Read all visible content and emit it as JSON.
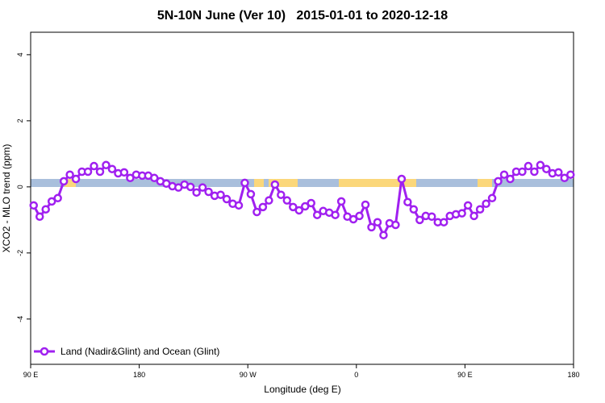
{
  "chart_data": {
    "type": "line",
    "title": "5N-10N June (Ver 10)   2015-01-01 to 2020-12-18",
    "x_label": "Longitude (deg E)",
    "y_label": "XCO2 - MLO trend (ppm)",
    "xlim": [
      90,
      540
    ],
    "ylim": [
      -5.37,
      4.68
    ],
    "xticks": [
      {
        "value": 90,
        "label": "90 E"
      },
      180,
      {
        "value": 270,
        "label": "90 W"
      },
      {
        "value": 360,
        "label": "0"
      },
      {
        "value": 450,
        "label": "90 E"
      },
      {
        "value": 540,
        "label": "180"
      }
    ],
    "yticks": [
      -4,
      -2,
      0,
      2,
      4
    ],
    "legend": "bottom-left",
    "series": [
      {
        "name": "Land (Nadir&Glint) and Ocean (Glint)",
        "color": "#a020f0",
        "x": [
          92.5,
          97.5,
          102.5,
          107.5,
          112.5,
          117.5,
          122.5,
          127.5,
          132.5,
          137.5,
          142.5,
          147.5,
          152.5,
          157.5,
          162.5,
          167.5,
          172.5,
          177.5,
          182.5,
          187.5,
          192.5,
          197.5,
          202.5,
          207.5,
          212.5,
          217.5,
          222.5,
          227.5,
          232.5,
          237.5,
          242.5,
          247.5,
          252.5,
          257.5,
          262.5,
          267.5,
          272.5,
          277.5,
          282.5,
          287.5,
          292.5,
          297.5,
          302.5,
          307.5,
          312.5,
          317.5,
          322.5,
          327.5,
          332.5,
          337.5,
          342.5,
          347.5,
          352.5,
          357.5,
          362.5,
          367.5,
          372.5,
          377.5,
          382.5,
          387.5,
          392.5,
          397.5,
          402.5,
          407.5,
          412.5,
          417.5,
          422.5,
          427.5,
          432.5,
          437.5,
          442.5,
          447.5,
          452.5,
          457.5,
          462.5,
          467.5,
          472.5,
          477.5,
          482.5,
          487.5,
          492.5,
          497.5,
          502.5,
          507.5,
          512.5,
          517.5,
          522.5,
          527.5,
          532.5,
          537.5
        ],
        "values": [
          -0.56,
          -0.9,
          -0.68,
          -0.44,
          -0.34,
          0.17,
          0.37,
          0.24,
          0.46,
          0.46,
          0.63,
          0.46,
          0.66,
          0.54,
          0.41,
          0.44,
          0.27,
          0.37,
          0.34,
          0.34,
          0.27,
          0.17,
          0.1,
          0.02,
          -0.02,
          0.07,
          0.0,
          -0.17,
          -0.02,
          -0.15,
          -0.27,
          -0.24,
          -0.37,
          -0.51,
          -0.56,
          0.12,
          -0.22,
          -0.76,
          -0.61,
          -0.41,
          0.07,
          -0.24,
          -0.41,
          -0.61,
          -0.71,
          -0.59,
          -0.49,
          -0.85,
          -0.73,
          -0.78,
          -0.85,
          -0.44,
          -0.9,
          -0.98,
          -0.88,
          -0.54,
          -1.22,
          -1.07,
          -1.46,
          -1.1,
          -1.15,
          0.24,
          -0.46,
          -0.68,
          -1.0,
          -0.88,
          -0.9,
          -1.07,
          -1.07,
          -0.88,
          -0.83,
          -0.8,
          -0.56,
          -0.88,
          -0.68,
          -0.51,
          -0.34,
          0.17,
          0.37,
          0.24,
          0.46,
          0.46,
          0.63,
          0.46,
          0.66,
          0.54,
          0.41,
          0.44,
          0.27,
          0.37
        ]
      }
    ]
  }
}
